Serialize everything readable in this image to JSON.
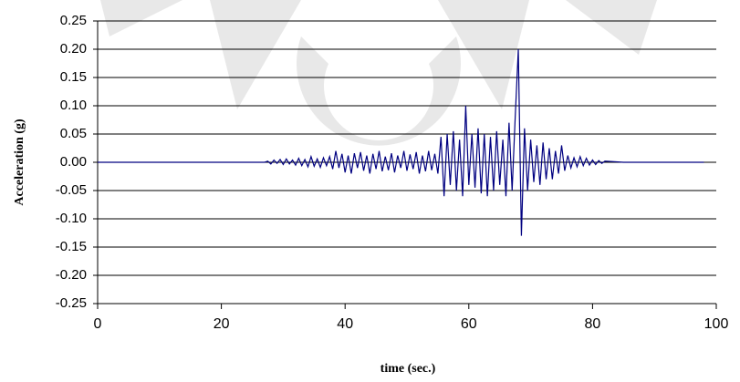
{
  "chart_data": {
    "type": "line",
    "x_label": "time (sec.)",
    "y_label": "Acceleration (g)",
    "xlim": [
      0,
      100
    ],
    "xticks": [
      0,
      20,
      40,
      60,
      80,
      100
    ],
    "ylim": [
      -0.25,
      0.25
    ],
    "yticks": [
      -0.25,
      {
        "value": -0.2,
        "label": "-0.20"
      },
      -0.15,
      {
        "value": -0.1,
        "label": "-0.10"
      },
      -0.05,
      {
        "value": 0,
        "label": "0.00"
      },
      0.05,
      {
        "value": 0.1,
        "label": "0.10"
      },
      0.15,
      {
        "value": 0.2,
        "label": "0.20"
      },
      0.25
    ],
    "grid": true,
    "series": [
      {
        "color": "#000080",
        "x": [
          0,
          10,
          20,
          27,
          27.5,
          28,
          28.5,
          29,
          29.5,
          30,
          30.5,
          31,
          31.5,
          32,
          32.5,
          33,
          33.5,
          34,
          34.5,
          35,
          35.5,
          36,
          36.5,
          37,
          37.5,
          38,
          38.5,
          39,
          39.5,
          40,
          40.5,
          41,
          41.5,
          42,
          42.5,
          43,
          43.5,
          44,
          44.5,
          45,
          45.5,
          46,
          46.5,
          47,
          47.5,
          48,
          48.5,
          49,
          49.5,
          50,
          50.5,
          51,
          51.5,
          52,
          52.5,
          53,
          53.5,
          54,
          54.5,
          55,
          55.5,
          56,
          56.5,
          57,
          57.5,
          58,
          58.5,
          59,
          59.5,
          60,
          60.5,
          61,
          61.5,
          62,
          62.5,
          63,
          63.5,
          64,
          64.5,
          65,
          65.5,
          66,
          66.5,
          67,
          67.5,
          68,
          68.5,
          69,
          69.5,
          70,
          70.5,
          71,
          71.5,
          72,
          72.5,
          73,
          73.5,
          74,
          74.5,
          75,
          75.5,
          76,
          76.5,
          77,
          77.5,
          78,
          78.5,
          79,
          79.5,
          80,
          80.5,
          81,
          81.5,
          82,
          85,
          90,
          95,
          98
        ],
        "values": [
          0,
          0,
          0,
          0,
          0.002,
          -0.003,
          0.004,
          -0.002,
          0.005,
          -0.004,
          0.006,
          -0.003,
          0.004,
          -0.005,
          0.007,
          -0.006,
          0.005,
          -0.008,
          0.01,
          -0.007,
          0.006,
          -0.009,
          0.008,
          -0.006,
          0.01,
          -0.012,
          0.02,
          -0.01,
          0.015,
          -0.018,
          0.012,
          -0.02,
          0.016,
          -0.01,
          0.018,
          -0.015,
          0.012,
          -0.02,
          0.015,
          -0.012,
          0.02,
          -0.016,
          0.01,
          -0.014,
          0.016,
          -0.018,
          0.012,
          -0.01,
          0.02,
          -0.015,
          0.014,
          -0.012,
          0.018,
          -0.02,
          0.012,
          -0.016,
          0.02,
          -0.014,
          0.015,
          -0.02,
          0.045,
          -0.06,
          0.05,
          -0.04,
          0.055,
          -0.05,
          0.04,
          -0.06,
          0.1,
          -0.04,
          0.05,
          -0.045,
          0.06,
          -0.055,
          0.05,
          -0.06,
          0.045,
          -0.05,
          0.055,
          -0.04,
          0.04,
          -0.06,
          0.07,
          -0.05,
          0.08,
          0.2,
          -0.13,
          0.06,
          -0.05,
          0.04,
          -0.035,
          0.03,
          -0.04,
          0.035,
          -0.03,
          0.025,
          -0.03,
          0.02,
          -0.02,
          0.03,
          -0.015,
          0.012,
          -0.01,
          0.008,
          -0.008,
          0.01,
          -0.006,
          0.007,
          -0.005,
          0.004,
          -0.004,
          0.003,
          -0.002,
          0.002,
          0,
          0,
          0,
          0
        ]
      }
    ]
  }
}
